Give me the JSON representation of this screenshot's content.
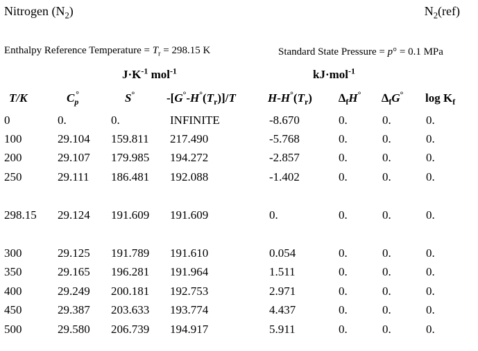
{
  "header": {
    "species_name": "Nitrogen (",
    "species_formula_main": "N",
    "species_formula_sub": "2",
    "species_close": ")",
    "ref_main": "N",
    "ref_sub": "2",
    "ref_suffix": "(ref)"
  },
  "conditions": {
    "enthalpy_ref_label": "Enthalpy Reference Temperature = ",
    "tr_symbol": "T",
    "tr_sub": "r",
    "tr_value": " = 298.15 K",
    "pressure_label": "Standard State Pressure = ",
    "p_symbol": "p",
    "p_deg": "°",
    "p_value": " = 0.1 MPa"
  },
  "units": {
    "entropy_units_a": "J·K",
    "entropy_units_sup": "-1",
    "entropy_units_b": " mol",
    "entropy_units_sup2": "-1",
    "energy_units_a": "kJ·mol",
    "energy_units_sup": "-1"
  },
  "columns": {
    "t": "T/K",
    "cp_sym": "C",
    "cp_sub": "p",
    "deg": "°",
    "s_sym": "S",
    "gef_a": "-[",
    "gef_g": "G",
    "gef_dash": "-",
    "gef_h": "H",
    "gef_paren": "(",
    "gef_t": "T",
    "gef_r": "r",
    "gef_close": ")]/",
    "gef_tt": "T",
    "hh_h": "H",
    "hh_dash": "-",
    "hh_h2": "H",
    "hh_paren": "(",
    "hh_t": "T",
    "hh_r": "r",
    "hh_close": ")",
    "delta": "∆",
    "f_sub": "f",
    "dfh_h": "H",
    "dfg_g": "G",
    "logk": "log K",
    "logk_sub": "f"
  },
  "rows": [
    [
      "0",
      "0.",
      "0.",
      "INFINITE",
      "-8.670",
      "0.",
      "0.",
      "0."
    ],
    [
      "100",
      "29.104",
      "159.811",
      "217.490",
      "-5.768",
      "0.",
      "0.",
      "0."
    ],
    [
      "200",
      "29.107",
      "179.985",
      "194.272",
      "-2.857",
      "0.",
      "0.",
      "0."
    ],
    [
      "250",
      "29.111",
      "186.481",
      "192.088",
      "-1.402",
      "0.",
      "0.",
      "0."
    ],
    [
      "298.15",
      "29.124",
      "191.609",
      "191.609",
      "0.",
      "0.",
      "0.",
      "0."
    ],
    [
      "300",
      "29.125",
      "191.789",
      "191.610",
      "0.054",
      "0.",
      "0.",
      "0."
    ],
    [
      "350",
      "29.165",
      "196.281",
      "191.964",
      "1.511",
      "0.",
      "0.",
      "0."
    ],
    [
      "400",
      "29.249",
      "200.181",
      "192.753",
      "2.971",
      "0.",
      "0.",
      "0."
    ],
    [
      "450",
      "29.387",
      "203.633",
      "193.774",
      "4.437",
      "0.",
      "0.",
      "0."
    ],
    [
      "500",
      "29.580",
      "206.739",
      "194.917",
      "5.911",
      "0.",
      "0.",
      "0."
    ]
  ]
}
